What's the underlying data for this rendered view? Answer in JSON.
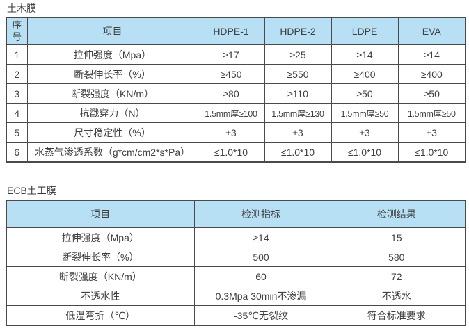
{
  "page": {
    "background_color": "#ffffff",
    "text_color": "#3f3f3f",
    "header_bg_color": "#b8e0f5",
    "border_color": "#4a4a4a"
  },
  "table1": {
    "title": "土木膜",
    "columns": [
      "序号",
      "项目",
      "HDPE-1",
      "HDPE-2",
      "LDPE",
      "EVA"
    ],
    "rows": [
      [
        "1",
        "拉伸强度（Mpa）",
        "≥17",
        "≥25",
        "≥14",
        "≥14"
      ],
      [
        "2",
        "断裂伸长率（%）",
        "≥450",
        "≥550",
        "≥400",
        "≥400"
      ],
      [
        "3",
        "断裂强度（KN/m）",
        "≥80",
        "≥110",
        "≥50",
        "≥50"
      ],
      [
        "4",
        "抗戳穿力（N）",
        "1.5mm厚≥100",
        "1.5mm厚≥130",
        "1.5mm厚≥50",
        "1.5mm厚≥50"
      ],
      [
        "5",
        "尺寸稳定性（%）",
        "±3",
        "±3",
        "±3",
        "±3"
      ],
      [
        "6",
        "水蒸气渗透系数（g*cm/cm2*s*Pa）",
        "≤1.0*10",
        "≤1.0*10",
        "≤1.0*10",
        "≤1.0*10"
      ]
    ]
  },
  "table2": {
    "title": "ECB土工膜",
    "columns": [
      "项目",
      "检测指标",
      "检测结果"
    ],
    "rows": [
      [
        "拉伸强度（Mpa）",
        "≥14",
        "15"
      ],
      [
        "断裂伸长率（%）",
        "500",
        "580"
      ],
      [
        "断裂强度（KN/m）",
        "60",
        "72"
      ],
      [
        "不透水性",
        "0.3Mpa 30min不渗漏",
        "不透水"
      ],
      [
        "低温弯折（℃）",
        "-35℃无裂纹",
        "符合标准要求"
      ]
    ]
  }
}
